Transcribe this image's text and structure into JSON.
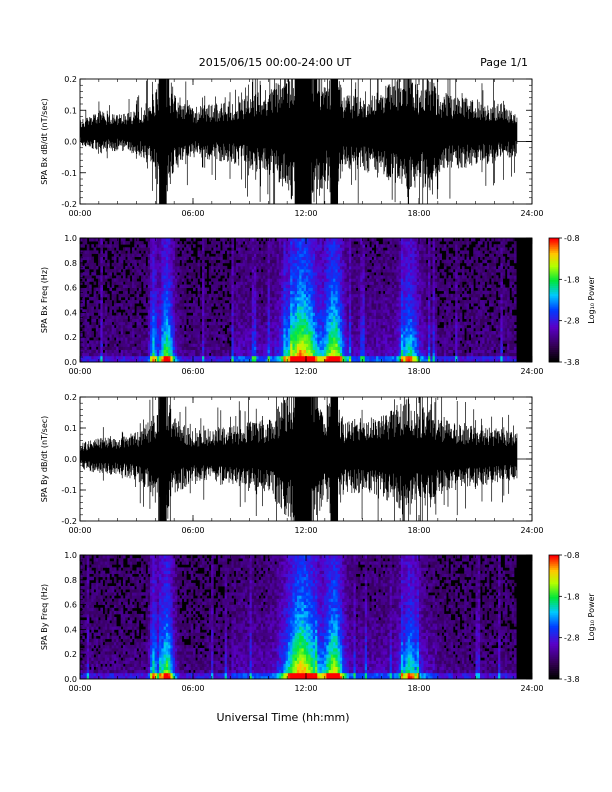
{
  "header": {
    "title": "2015/06/15  00:00-24:00 UT",
    "page": "Page 1/1"
  },
  "xlabel": "Universal Time (hh:mm)",
  "colorbar": {
    "label": "Log₁₀ Power",
    "ticks": [
      "-0.8",
      "-1.8",
      "-2.8",
      "-3.8"
    ],
    "range": [
      -3.8,
      -0.8
    ]
  },
  "chart_data": [
    {
      "type": "line",
      "ylabel": "SPA Bx dB/dt (nT/sec)",
      "xlim": [
        0,
        24
      ],
      "ylim": [
        -0.2,
        0.2
      ],
      "x_ticks": [
        "00:00",
        "06:00",
        "12:00",
        "18:00",
        "24:00"
      ],
      "y_ticks": [
        "-0.2",
        "-0.1",
        "0.0",
        "0.1",
        "0.2"
      ],
      "envelope": {
        "x_hours": [
          0.0,
          0.5,
          1.0,
          2.0,
          3.0,
          3.8,
          4.3,
          4.6,
          5.0,
          6.0,
          7.0,
          8.0,
          9.0,
          10.0,
          11.0,
          11.5,
          12.0,
          12.5,
          13.0,
          13.5,
          14.0,
          15.0,
          16.0,
          17.0,
          17.5,
          18.0,
          18.5,
          19.0,
          20.0,
          21.0,
          22.0,
          23.0,
          23.2
        ],
        "amplitude": [
          0.04,
          0.05,
          0.07,
          0.06,
          0.07,
          0.11,
          0.2,
          0.22,
          0.13,
          0.08,
          0.09,
          0.1,
          0.12,
          0.14,
          0.2,
          0.24,
          0.24,
          0.24,
          0.16,
          0.22,
          0.12,
          0.13,
          0.14,
          0.18,
          0.22,
          0.15,
          0.2,
          0.13,
          0.12,
          0.11,
          0.1,
          0.08,
          0.08
        ]
      },
      "offset": 0.03,
      "baseline_after": 23.2
    },
    {
      "type": "heatmap",
      "ylabel": "SPA Bx Freq (Hz)",
      "xlim": [
        0,
        24
      ],
      "ylim": [
        0,
        1
      ],
      "x_ticks": [
        "00:00",
        "06:00",
        "12:00",
        "18:00",
        "24:00"
      ],
      "y_ticks": [
        "0.0",
        "0.2",
        "0.4",
        "0.6",
        "0.8",
        "1.0"
      ],
      "color_range": [
        -3.8,
        -0.8
      ],
      "active_bands": [
        {
          "center_hours": 4.6,
          "width_hours": 0.4,
          "strength": 0.8
        },
        {
          "center_hours": 3.9,
          "width_hours": 0.2,
          "strength": 0.6
        },
        {
          "center_hours": 11.8,
          "width_hours": 0.9,
          "strength": 1.0
        },
        {
          "center_hours": 13.5,
          "width_hours": 0.5,
          "strength": 0.85
        },
        {
          "center_hours": 17.5,
          "width_hours": 0.5,
          "strength": 0.55
        }
      ]
    },
    {
      "type": "line",
      "ylabel": "SPA By dB/dt (nT/sec)",
      "xlim": [
        0,
        24
      ],
      "ylim": [
        -0.2,
        0.2
      ],
      "x_ticks": [
        "00:00",
        "06:00",
        "12:00",
        "18:00",
        "24:00"
      ],
      "y_ticks": [
        "-0.2",
        "-0.1",
        "0.0",
        "0.1",
        "0.2"
      ],
      "envelope": {
        "x_hours": [
          0.0,
          0.5,
          1.0,
          2.0,
          3.0,
          3.8,
          4.3,
          4.6,
          5.0,
          6.0,
          7.0,
          8.0,
          9.0,
          10.0,
          11.0,
          11.5,
          12.0,
          12.5,
          13.0,
          13.5,
          14.0,
          15.0,
          16.0,
          17.0,
          17.5,
          18.0,
          18.5,
          19.0,
          20.0,
          21.0,
          22.0,
          23.0,
          23.2
        ],
        "amplitude": [
          0.04,
          0.05,
          0.06,
          0.06,
          0.08,
          0.12,
          0.2,
          0.22,
          0.13,
          0.08,
          0.09,
          0.1,
          0.11,
          0.12,
          0.2,
          0.24,
          0.24,
          0.24,
          0.15,
          0.22,
          0.12,
          0.12,
          0.13,
          0.18,
          0.22,
          0.14,
          0.18,
          0.12,
          0.11,
          0.1,
          0.09,
          0.08,
          0.08
        ]
      },
      "offset": 0.01,
      "baseline_after": 23.2
    },
    {
      "type": "heatmap",
      "ylabel": "SPA By Freq (Hz)",
      "xlim": [
        0,
        24
      ],
      "ylim": [
        0,
        1
      ],
      "x_ticks": [
        "00:00",
        "06:00",
        "12:00",
        "18:00",
        "24:00"
      ],
      "y_ticks": [
        "0.0",
        "0.2",
        "0.4",
        "0.6",
        "0.8",
        "1.0"
      ],
      "color_range": [
        -3.8,
        -0.8
      ],
      "active_bands": [
        {
          "center_hours": 4.6,
          "width_hours": 0.4,
          "strength": 0.8
        },
        {
          "center_hours": 3.9,
          "width_hours": 0.2,
          "strength": 0.6
        },
        {
          "center_hours": 11.8,
          "width_hours": 0.9,
          "strength": 1.0
        },
        {
          "center_hours": 13.5,
          "width_hours": 0.5,
          "strength": 0.85
        },
        {
          "center_hours": 17.5,
          "width_hours": 0.5,
          "strength": 0.55
        }
      ]
    }
  ]
}
